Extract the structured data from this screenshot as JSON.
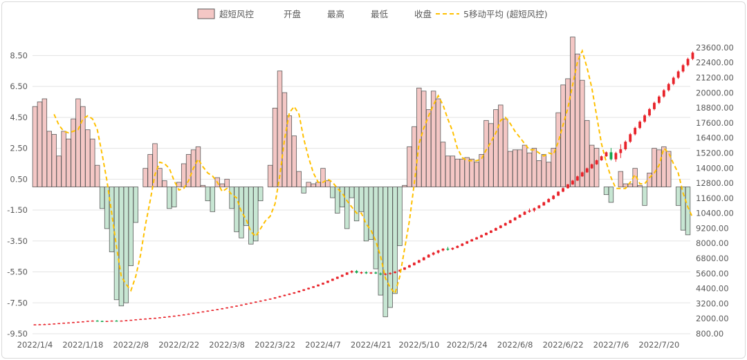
{
  "chart_data": {
    "type": "bar",
    "legend": {
      "position": "top",
      "entries": [
        "超短风控",
        "开盘",
        "最高",
        "最低",
        "收盘",
        "5移动平均 (超短风控)"
      ]
    },
    "colors": {
      "bar_pos_fill": "#f4c7c5",
      "bar_neg_fill": "#c7e6d3",
      "bar_stroke": "#595959",
      "ma_line": "#ffc000",
      "candle_up": "#e8232a",
      "candle_down": "#14a64e",
      "grid": "#e3e3e3"
    },
    "left_axis": {
      "min": -9.5,
      "max": 9.5,
      "ticks": [
        -9.5,
        -7.5,
        -5.5,
        -3.5,
        -1.5,
        0.5,
        2.5,
        4.5,
        6.5,
        8.5
      ],
      "tick_labels": [
        "-9.50",
        "-7.50",
        "-5.50",
        "-3.50",
        "-1.50",
        "0.50",
        "2.50",
        "4.50",
        "6.50",
        "8.50"
      ]
    },
    "right_axis": {
      "min": 800,
      "max": 24200,
      "ticks": [
        800,
        2000,
        3200,
        4400,
        5600,
        6800,
        8000,
        9200,
        10400,
        11600,
        12800,
        14000,
        15200,
        16400,
        17600,
        18800,
        20000,
        21200,
        22400,
        23600
      ],
      "tick_labels": [
        "800.00",
        "2000.00",
        "3200.00",
        "4400.00",
        "5600.00",
        "6800.00",
        "8000.00",
        "9200.00",
        "10400.00",
        "11600.00",
        "12800.00",
        "14000.00",
        "15200.00",
        "16400.00",
        "17600.00",
        "18800.00",
        "20000.00",
        "21200.00",
        "22400.00",
        "23600.00"
      ]
    },
    "x_tick_labels": [
      "2022/1/4",
      "2022/1/18",
      "2022/2/8",
      "2022/2/22",
      "2022/3/8",
      "2022/3/22",
      "2022/4/7",
      "2022/4/21",
      "2022/5/10",
      "2022/5/24",
      "2022/6/8",
      "2022/6/22",
      "2022/7/6",
      "2022/7/20"
    ],
    "x_tick_every": 10,
    "grid": true,
    "bars": [
      5.2,
      5.5,
      5.7,
      3.6,
      3.4,
      2.0,
      3.6,
      3.1,
      4.4,
      5.7,
      5.2,
      3.7,
      3.1,
      1.4,
      -1.4,
      -2.7,
      -4.2,
      -7.3,
      -7.7,
      -7.5,
      -5.1,
      -2.3,
      0,
      1.2,
      2.1,
      2.8,
      1.2,
      0.4,
      -1.4,
      -1.3,
      0.3,
      1.5,
      2.1,
      2.4,
      2.6,
      0.1,
      -0.9,
      -1.6,
      0.6,
      0.2,
      0.5,
      -1.4,
      -2.9,
      -3.3,
      -2.5,
      -3.7,
      -3.5,
      -0.9,
      0,
      1.4,
      5.1,
      7.5,
      6.1,
      4.6,
      3.3,
      1.0,
      -0.4,
      0.3,
      0.2,
      0.3,
      1.2,
      0.4,
      -0.7,
      -1.7,
      -1.3,
      -2.7,
      -0.7,
      -2.2,
      -1.6,
      -3.5,
      -3.4,
      -5.3,
      -7.0,
      -8.4,
      -7.8,
      -6.9,
      -3.8,
      0.1,
      2.6,
      3.9,
      6.4,
      6.2,
      5.0,
      6.2,
      5.7,
      2.9,
      2.0,
      2.0,
      1.8,
      1.8,
      1.9,
      1.8,
      1.6,
      2.1,
      4.3,
      4.1,
      5.0,
      5.3,
      4.4,
      2.3,
      2.4,
      2.4,
      2.7,
      2.2,
      2.5,
      1.7,
      2.1,
      1.6,
      2.5,
      4.8,
      6.6,
      7.0,
      9.7,
      8.6,
      6.9,
      4.3,
      2.7,
      2.5,
      0,
      -0.5,
      -1.0,
      0,
      1.0,
      0.2,
      0.2,
      1.2,
      0.1,
      -1.2,
      0.9,
      2.5,
      2.4,
      2.6,
      2.3,
      0.0,
      -1.2,
      -2.8,
      -3.1
    ],
    "ma5": [
      null,
      null,
      null,
      null,
      4.7,
      4.0,
      3.6,
      3.5,
      3.6,
      3.7,
      4.4,
      4.6,
      4.4,
      3.7,
      2.1,
      0.4,
      -1.7,
      -3.9,
      -5.8,
      -6.3,
      -6.7,
      -5.8,
      -4.4,
      -2.5,
      -0.9,
      0.8,
      1.6,
      1.5,
      1.2,
      0.4,
      -0.2,
      -0.1,
      0.4,
      1.2,
      1.8,
      1.3,
      0.9,
      0.7,
      0.3,
      -0.3,
      -0.1,
      -0.5,
      -0.7,
      -1.6,
      -2.1,
      -2.9,
      -3.2,
      -2.7,
      -2.2,
      -1.9,
      -1.1,
      0.7,
      3.1,
      4.8,
      5.2,
      4.7,
      3.1,
      1.9,
      0.9,
      0.3,
      0.3,
      0.5,
      0.3,
      -0.1,
      -0.4,
      -0.9,
      -1.3,
      -1.7,
      -1.7,
      -2.4,
      -2.8,
      -3.5,
      -4.5,
      -5.9,
      -6.5,
      -6.9,
      -5.8,
      -4.0,
      -2.2,
      0.2,
      2.8,
      3.8,
      4.6,
      5.3,
      5.9,
      5.3,
      4.4,
      3.6,
      2.5,
      1.9,
      1.7,
      1.7,
      1.7,
      1.8,
      2.4,
      2.9,
      3.5,
      4.3,
      4.5,
      4.1,
      3.6,
      3.2,
      2.8,
      2.4,
      2.4,
      2.2,
      2.0,
      2.2,
      2.1,
      2.9,
      4.0,
      5.1,
      6.6,
      8.1,
      8.8,
      7.7,
      6.4,
      4.6,
      2.8,
      1.6,
      0.6,
      -0.1,
      -0.1,
      -0.1,
      0.3,
      0.8,
      0.2,
      0.2,
      0.6,
      0.9,
      1.4,
      2.5,
      2.2,
      1.5,
      0.9,
      -0.4,
      -1.3,
      -2.0
    ],
    "candles": [
      [
        1520,
        1560,
        1500,
        1550
      ],
      [
        1550,
        1580,
        1530,
        1560
      ],
      [
        1560,
        1600,
        1540,
        1570
      ],
      [
        1570,
        1610,
        1550,
        1590
      ],
      [
        1590,
        1630,
        1570,
        1620
      ],
      [
        1620,
        1660,
        1600,
        1650
      ],
      [
        1650,
        1690,
        1630,
        1680
      ],
      [
        1680,
        1720,
        1660,
        1700
      ],
      [
        1700,
        1750,
        1680,
        1730
      ],
      [
        1730,
        1780,
        1710,
        1760
      ],
      [
        1760,
        1800,
        1740,
        1790
      ],
      [
        1790,
        1840,
        1770,
        1830
      ],
      [
        1830,
        1870,
        1810,
        1850
      ],
      [
        1850,
        1880,
        1790,
        1820
      ],
      [
        1820,
        1850,
        1760,
        1790
      ],
      [
        1790,
        1830,
        1770,
        1820
      ],
      [
        1820,
        1860,
        1800,
        1850
      ],
      [
        1850,
        1880,
        1810,
        1830
      ],
      [
        1830,
        1860,
        1800,
        1850
      ],
      [
        1850,
        1900,
        1830,
        1880
      ],
      [
        1880,
        1920,
        1860,
        1910
      ],
      [
        1910,
        1960,
        1890,
        1950
      ],
      [
        1950,
        2000,
        1930,
        1980
      ],
      [
        1980,
        2030,
        1960,
        2010
      ],
      [
        2010,
        2060,
        1990,
        2040
      ],
      [
        2040,
        2090,
        2020,
        2070
      ],
      [
        2070,
        2130,
        2050,
        2110
      ],
      [
        2110,
        2170,
        2090,
        2150
      ],
      [
        2150,
        2220,
        2130,
        2190
      ],
      [
        2190,
        2260,
        2170,
        2240
      ],
      [
        2240,
        2310,
        2220,
        2290
      ],
      [
        2290,
        2360,
        2270,
        2340
      ],
      [
        2340,
        2420,
        2320,
        2400
      ],
      [
        2400,
        2480,
        2380,
        2460
      ],
      [
        2460,
        2540,
        2440,
        2520
      ],
      [
        2520,
        2600,
        2500,
        2580
      ],
      [
        2580,
        2660,
        2560,
        2640
      ],
      [
        2640,
        2720,
        2620,
        2700
      ],
      [
        2700,
        2780,
        2680,
        2760
      ],
      [
        2760,
        2850,
        2740,
        2830
      ],
      [
        2830,
        2920,
        2810,
        2900
      ],
      [
        2900,
        2990,
        2880,
        2970
      ],
      [
        2970,
        3060,
        2950,
        3040
      ],
      [
        3040,
        3140,
        3020,
        3120
      ],
      [
        3120,
        3220,
        3100,
        3200
      ],
      [
        3200,
        3300,
        3180,
        3280
      ],
      [
        3280,
        3380,
        3260,
        3360
      ],
      [
        3360,
        3460,
        3340,
        3440
      ],
      [
        3440,
        3540,
        3420,
        3520
      ],
      [
        3520,
        3620,
        3500,
        3600
      ],
      [
        3600,
        3720,
        3580,
        3700
      ],
      [
        3700,
        3820,
        3680,
        3800
      ],
      [
        3800,
        3920,
        3780,
        3900
      ],
      [
        3900,
        4020,
        3880,
        4000
      ],
      [
        4000,
        4120,
        3980,
        4100
      ],
      [
        4100,
        4240,
        4080,
        4220
      ],
      [
        4220,
        4360,
        4200,
        4340
      ],
      [
        4340,
        4480,
        4320,
        4460
      ],
      [
        4460,
        4600,
        4440,
        4580
      ],
      [
        4580,
        4740,
        4560,
        4720
      ],
      [
        4720,
        4880,
        4700,
        4860
      ],
      [
        4860,
        5040,
        4840,
        5020
      ],
      [
        5020,
        5200,
        5000,
        5180
      ],
      [
        5180,
        5360,
        5160,
        5340
      ],
      [
        5340,
        5520,
        5320,
        5500
      ],
      [
        5500,
        5700,
        5480,
        5680
      ],
      [
        5680,
        5860,
        5620,
        5800
      ],
      [
        5800,
        5880,
        5600,
        5660
      ],
      [
        5660,
        5760,
        5560,
        5700
      ],
      [
        5700,
        5780,
        5560,
        5620
      ],
      [
        5620,
        5720,
        5560,
        5680
      ],
      [
        5680,
        5760,
        5560,
        5600
      ],
      [
        5600,
        5680,
        5460,
        5520
      ],
      [
        5520,
        5640,
        5440,
        5580
      ],
      [
        5580,
        5700,
        5500,
        5640
      ],
      [
        5640,
        5780,
        5600,
        5760
      ],
      [
        5760,
        5920,
        5740,
        5900
      ],
      [
        5900,
        6100,
        5880,
        6080
      ],
      [
        6080,
        6300,
        6060,
        6260
      ],
      [
        6260,
        6500,
        6240,
        6460
      ],
      [
        6460,
        6700,
        6440,
        6660
      ],
      [
        6660,
        6920,
        6640,
        6880
      ],
      [
        6880,
        7140,
        6860,
        7100
      ],
      [
        7100,
        7320,
        7040,
        7260
      ],
      [
        7260,
        7480,
        7180,
        7440
      ],
      [
        7440,
        7620,
        7360,
        7580
      ],
      [
        7580,
        7720,
        7420,
        7520
      ],
      [
        7520,
        7680,
        7460,
        7640
      ],
      [
        7640,
        7840,
        7620,
        7800
      ],
      [
        7800,
        8020,
        7780,
        7980
      ],
      [
        7980,
        8200,
        7960,
        8160
      ],
      [
        8160,
        8360,
        8140,
        8320
      ],
      [
        8320,
        8520,
        8300,
        8480
      ],
      [
        8480,
        8700,
        8460,
        8660
      ],
      [
        8660,
        8880,
        8640,
        8840
      ],
      [
        8840,
        9060,
        8820,
        9020
      ],
      [
        9020,
        9260,
        9000,
        9220
      ],
      [
        9220,
        9460,
        9200,
        9420
      ],
      [
        9420,
        9660,
        9400,
        9620
      ],
      [
        9620,
        9880,
        9600,
        9840
      ],
      [
        9840,
        10100,
        9820,
        10060
      ],
      [
        10060,
        10320,
        10040,
        10280
      ],
      [
        10280,
        10560,
        10260,
        10520
      ],
      [
        10520,
        10780,
        10440,
        10620
      ],
      [
        10620,
        10860,
        10500,
        10800
      ],
      [
        10800,
        11060,
        10780,
        11020
      ],
      [
        11020,
        11320,
        11000,
        11280
      ],
      [
        11280,
        11600,
        11260,
        11540
      ],
      [
        11540,
        11860,
        11480,
        11800
      ],
      [
        11800,
        12160,
        11780,
        12120
      ],
      [
        12120,
        12460,
        12080,
        12400
      ],
      [
        12400,
        12740,
        12360,
        12700
      ],
      [
        12700,
        13060,
        12660,
        13000
      ],
      [
        13000,
        13400,
        12980,
        13340
      ],
      [
        13340,
        13720,
        13300,
        13660
      ],
      [
        13660,
        14040,
        13620,
        13980
      ],
      [
        13980,
        14360,
        13940,
        14300
      ],
      [
        14300,
        14680,
        14260,
        14620
      ],
      [
        14620,
        15000,
        14580,
        14940
      ],
      [
        14940,
        15320,
        14900,
        15260
      ],
      [
        15260,
        15600,
        14600,
        14700
      ],
      [
        14700,
        15300,
        14500,
        15200
      ],
      [
        15200,
        15900,
        14800,
        15500
      ],
      [
        15500,
        16200,
        15400,
        16100
      ],
      [
        16100,
        16800,
        16000,
        16700
      ],
      [
        16700,
        17300,
        16600,
        17200
      ],
      [
        17200,
        17800,
        17100,
        17700
      ],
      [
        17700,
        18300,
        17600,
        18200
      ],
      [
        18200,
        18800,
        18100,
        18700
      ],
      [
        18700,
        19300,
        18600,
        19200
      ],
      [
        19200,
        19800,
        19100,
        19700
      ],
      [
        19700,
        20300,
        19600,
        20200
      ],
      [
        20200,
        20800,
        20100,
        20700
      ],
      [
        20700,
        21300,
        20600,
        21200
      ],
      [
        21200,
        21800,
        21100,
        21700
      ],
      [
        21700,
        22300,
        21600,
        22200
      ],
      [
        22200,
        22800,
        22100,
        22700
      ],
      [
        22700,
        23300,
        22600,
        23200
      ]
    ]
  }
}
